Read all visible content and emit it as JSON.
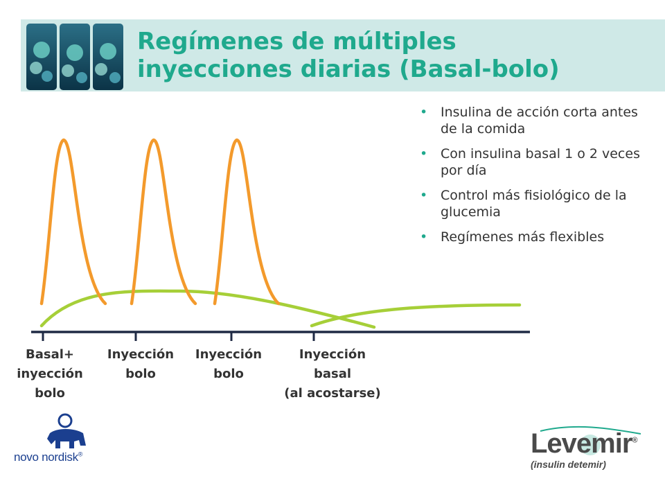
{
  "title": {
    "line1": "Regímenes de múltiples",
    "line2": "inyecciones diarias (Basal-bolo)"
  },
  "bullets": [
    "Insulina de acción corta antes de la comida",
    "Con insulina basal 1 o 2 veces por día",
    "Control más fisiológico de la glucemia",
    "Regímenes más flexibles"
  ],
  "timeline": {
    "labels": [
      "Basal+\ninyección\nbolo",
      "Inyección\nbolo",
      "Inyección\nbolo",
      "Inyección\nbasal\n(al acostarse)"
    ]
  },
  "colors": {
    "title": "#1fa98d",
    "bolus_curve": "#f39a2c",
    "basal_curve": "#a6cf38",
    "axis": "#1f2a44",
    "banner": "#cfe9e7"
  },
  "logos": {
    "left_brand": "novo nordisk",
    "right_brand": "Levemir",
    "right_subtitle": "(insulin detemir)"
  },
  "icons": {
    "header_images": "insulin-crystal-thumbnails-icon",
    "left_logo": "apis-bull-icon",
    "right_logo": "levemir-logo-icon"
  }
}
